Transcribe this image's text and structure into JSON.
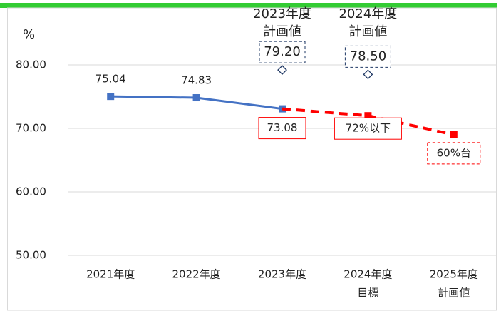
{
  "chart_data": {
    "type": "line",
    "y_unit": "%",
    "categories": [
      [
        "2021年度"
      ],
      [
        "2022年度"
      ],
      [
        "2023年度"
      ],
      [
        "2024年度",
        "目標"
      ],
      [
        "2025年度",
        "計画値"
      ]
    ],
    "ylim": [
      50,
      80
    ],
    "yticks": [
      {
        "value": 50,
        "label": "50.00"
      },
      {
        "value": 60,
        "label": "60.00"
      },
      {
        "value": 70,
        "label": "70.00"
      },
      {
        "value": 80,
        "label": "80.00"
      }
    ],
    "grid": true,
    "series": [
      {
        "color": "#4472c4",
        "style": "solid",
        "values": [
          75.04,
          74.83,
          73.08,
          null,
          null
        ],
        "value_labels": [
          "75.04",
          "74.83",
          "73.08",
          null,
          null
        ]
      },
      {
        "color": "#ff0000",
        "style": "dashed",
        "values": [
          null,
          null,
          73.08,
          72,
          69
        ],
        "value_labels": [
          null,
          null,
          null,
          "72%以下",
          "60%台"
        ]
      },
      {
        "color": "#1f3864",
        "style": "diamond",
        "values": [
          null,
          null,
          79.2,
          78.5,
          null
        ],
        "value_labels": [
          null,
          null,
          "79.20",
          "78.50",
          null
        ],
        "point_titles": [
          null,
          null,
          [
            "2023年度",
            "計画値"
          ],
          [
            "2024年度",
            "計画値"
          ],
          null
        ]
      }
    ]
  }
}
